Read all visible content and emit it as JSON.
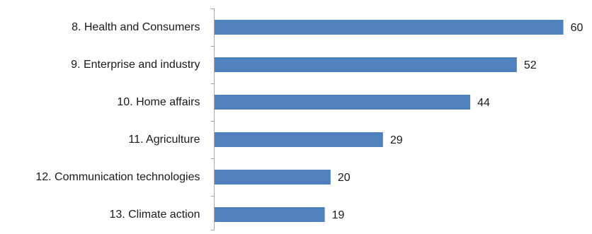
{
  "chart_data": {
    "type": "bar",
    "orientation": "horizontal",
    "title": "",
    "xlabel": "",
    "ylabel": "",
    "categories": [
      "8. Health and Consumers",
      "9. Enterprise and industry",
      "10. Home affairs",
      "11. Agriculture",
      "12. Communication technologies",
      "13. Climate action"
    ],
    "values": [
      60,
      52,
      44,
      29,
      20,
      19
    ],
    "xlim": [
      0,
      62
    ],
    "grid": false,
    "legend": "none",
    "data_labels": true,
    "bar_color": "#4f81bd",
    "axis_color": "#a6a6a6"
  }
}
